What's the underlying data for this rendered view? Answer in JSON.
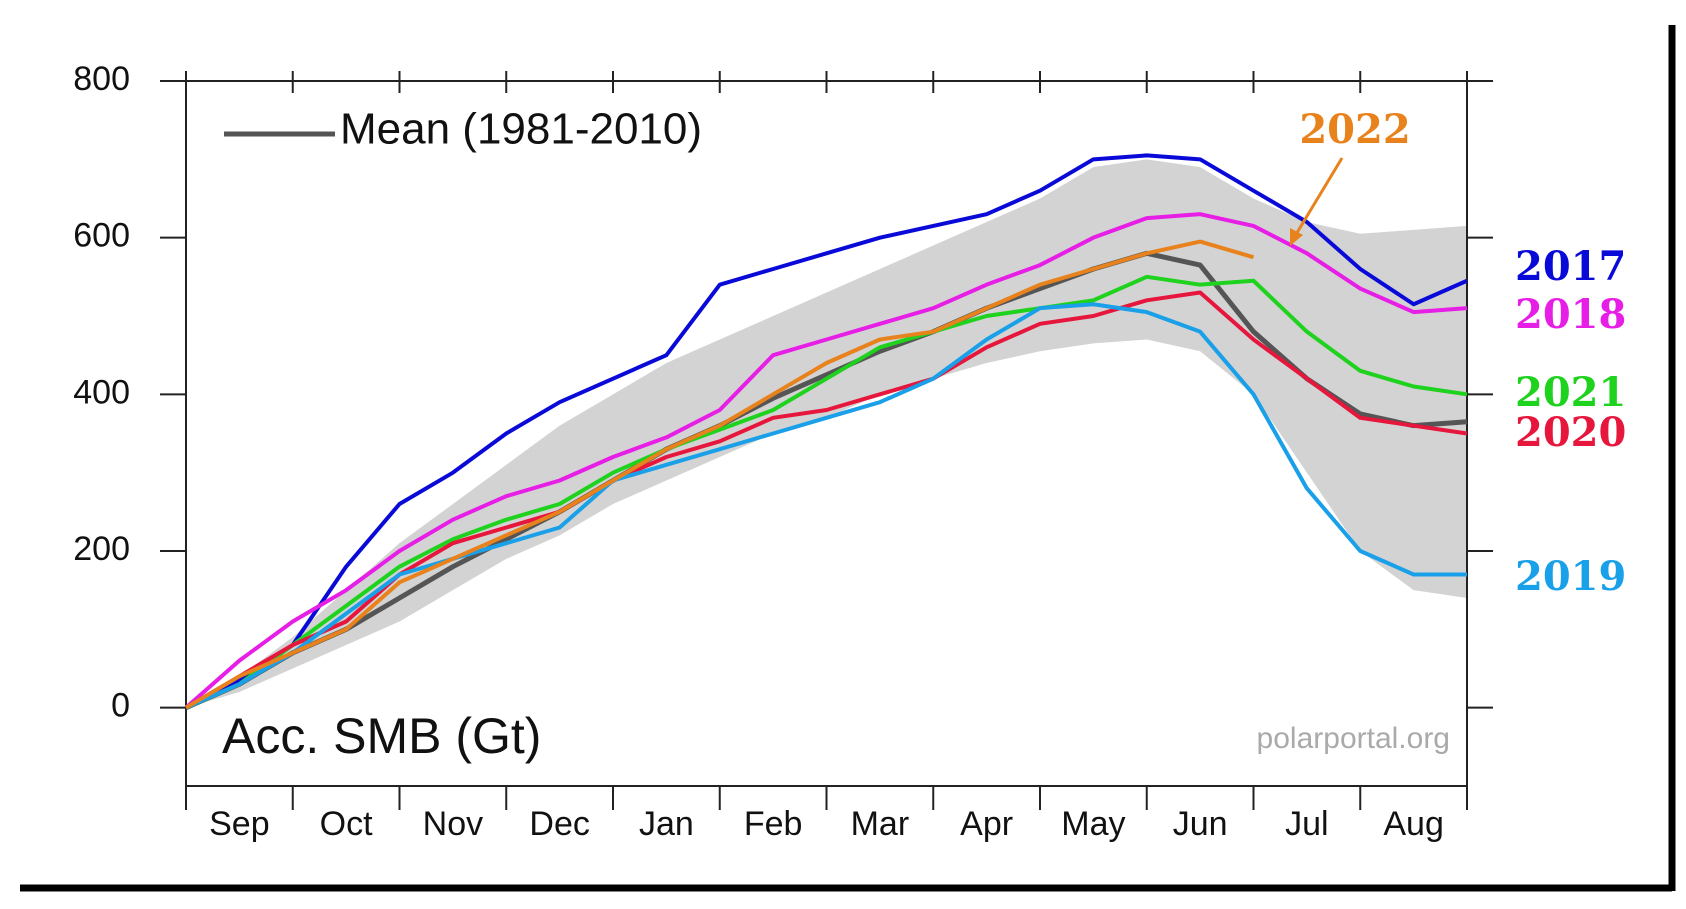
{
  "chart_data": {
    "type": "line",
    "ylabel": "Acc. SMB (Gt)",
    "source": "polarportal.org",
    "annotation": "2022",
    "categories": [
      null,
      "Sep",
      null,
      "Oct",
      null,
      "Nov",
      null,
      "Dec",
      null,
      "Jan",
      null,
      "Feb",
      null,
      "Mar",
      null,
      "Apr",
      null,
      "May",
      null,
      "Jun",
      null,
      "Jul",
      null,
      "Aug",
      null
    ],
    "ylim": [
      -100,
      800
    ],
    "yticks": [
      0,
      200,
      400,
      600,
      800
    ],
    "band": {
      "color": "#d3d3d3",
      "upper": [
        0,
        40,
        90,
        150,
        210,
        260,
        310,
        360,
        400,
        440,
        470,
        500,
        530,
        560,
        590,
        620,
        650,
        690,
        700,
        690,
        650,
        620,
        605,
        610,
        615
      ],
      "lower": [
        0,
        20,
        50,
        80,
        110,
        150,
        190,
        220,
        260,
        290,
        320,
        350,
        370,
        400,
        420,
        440,
        455,
        465,
        470,
        455,
        400,
        300,
        200,
        150,
        140
      ]
    },
    "series": [
      {
        "name": "Mean (1981-2010)",
        "color": "#555555",
        "values": [
          0,
          30,
          70,
          100,
          140,
          180,
          215,
          250,
          290,
          330,
          360,
          395,
          425,
          455,
          480,
          510,
          535,
          560,
          580,
          565,
          480,
          420,
          375,
          360,
          365
        ]
      },
      {
        "name": "2017",
        "color": "#0a0ad8",
        "values": [
          0,
          35,
          80,
          180,
          260,
          300,
          350,
          390,
          420,
          450,
          540,
          560,
          580,
          600,
          615,
          630,
          660,
          700,
          705,
          700,
          660,
          620,
          560,
          515,
          545
        ]
      },
      {
        "name": "2018",
        "color": "#e61ee6",
        "values": [
          0,
          60,
          110,
          150,
          200,
          240,
          270,
          290,
          320,
          345,
          380,
          450,
          470,
          490,
          510,
          540,
          565,
          600,
          625,
          630,
          615,
          580,
          535,
          505,
          510
        ]
      },
      {
        "name": "2021",
        "color": "#1ed21e",
        "values": [
          0,
          30,
          80,
          130,
          180,
          215,
          240,
          260,
          300,
          330,
          355,
          380,
          420,
          460,
          480,
          500,
          510,
          520,
          550,
          540,
          545,
          480,
          430,
          410,
          400
        ]
      },
      {
        "name": "2020",
        "color": "#e6163c",
        "values": [
          0,
          40,
          80,
          110,
          170,
          210,
          230,
          250,
          290,
          320,
          340,
          370,
          380,
          400,
          420,
          460,
          490,
          500,
          520,
          530,
          470,
          420,
          370,
          360,
          350
        ]
      },
      {
        "name": "2019",
        "color": "#1aa0e8",
        "values": [
          0,
          30,
          70,
          120,
          170,
          190,
          210,
          230,
          290,
          310,
          330,
          350,
          370,
          390,
          420,
          470,
          510,
          515,
          505,
          480,
          400,
          280,
          200,
          170,
          170
        ]
      },
      {
        "name": "2022",
        "color": "#e8821c",
        "values": [
          0,
          40,
          70,
          100,
          160,
          190,
          220,
          250,
          290,
          330,
          360,
          400,
          440,
          470,
          480,
          510,
          540,
          560,
          580,
          595,
          575,
          null,
          null,
          null,
          null
        ]
      }
    ]
  }
}
